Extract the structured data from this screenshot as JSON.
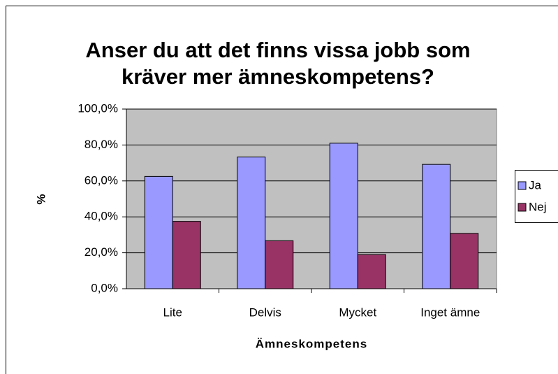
{
  "chart_data": {
    "type": "bar",
    "title": [
      "Anser du att det finns vissa jobb som",
      "kräver mer ämneskompetens?"
    ],
    "x_label": "Ämneskompetens",
    "y_label": "%",
    "categories": [
      "Lite",
      "Delvis",
      "Mycket",
      "Inget ämne"
    ],
    "series": [
      {
        "name": "Ja",
        "color": "#9999ff",
        "values": [
          62.5,
          73.3,
          81,
          69.2
        ]
      },
      {
        "name": "Nej",
        "color": "#993366",
        "values": [
          37.5,
          26.7,
          19,
          30.8
        ]
      }
    ],
    "ylim": [
      0,
      100
    ],
    "yticks": [
      {
        "value": 0,
        "label": "0,0%"
      },
      {
        "value": 20,
        "label": "20,0%"
      },
      {
        "value": 40,
        "label": "40,0%"
      },
      {
        "value": 60,
        "label": "60,0%"
      },
      {
        "value": 80,
        "label": "80,0%"
      },
      {
        "value": 100,
        "label": "100,0%"
      }
    ],
    "grid": true,
    "legend": "right",
    "plot_background": "#c0c0c0"
  }
}
